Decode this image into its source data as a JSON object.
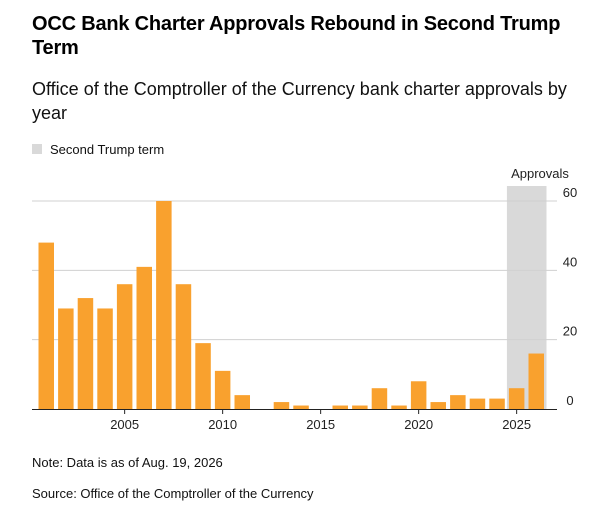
{
  "title": "OCC Bank Charter Approvals Rebound in Second Trump Term",
  "subtitle": "Office of the Comptroller of the Currency bank charter approvals by year",
  "legend": {
    "label": "Second Trump term",
    "color": "#d9d9d9"
  },
  "note": "Note: Data is as of Aug. 19, 2026",
  "source": "Source: Office of the Comptroller of the Currency",
  "chart_data": {
    "type": "bar",
    "title": "OCC Bank Charter Approvals Rebound in Second Trump Term",
    "subtitle": "Office of the Comptroller of the Currency bank charter approvals by year",
    "ylabel": "Approvals",
    "xlabel": "",
    "ylim": [
      0,
      60
    ],
    "yticks": [
      0,
      20,
      40,
      60
    ],
    "xticks": [
      2005,
      2010,
      2015,
      2020,
      2025
    ],
    "y_axis_position": "right",
    "grid": true,
    "bar_color": "#f9a12e",
    "shaded_region": {
      "label": "Second Trump term",
      "x_start": 2025,
      "x_end": 2026,
      "color": "#d9d9d9"
    },
    "categories": [
      2001,
      2002,
      2003,
      2004,
      2005,
      2006,
      2007,
      2008,
      2009,
      2010,
      2011,
      2012,
      2013,
      2014,
      2015,
      2016,
      2017,
      2018,
      2019,
      2020,
      2021,
      2022,
      2023,
      2024,
      2025,
      2026
    ],
    "values": [
      48,
      29,
      32,
      29,
      36,
      41,
      60,
      36,
      19,
      11,
      4,
      0,
      2,
      1,
      0,
      1,
      1,
      6,
      1,
      8,
      2,
      4,
      3,
      3,
      6,
      16
    ]
  }
}
